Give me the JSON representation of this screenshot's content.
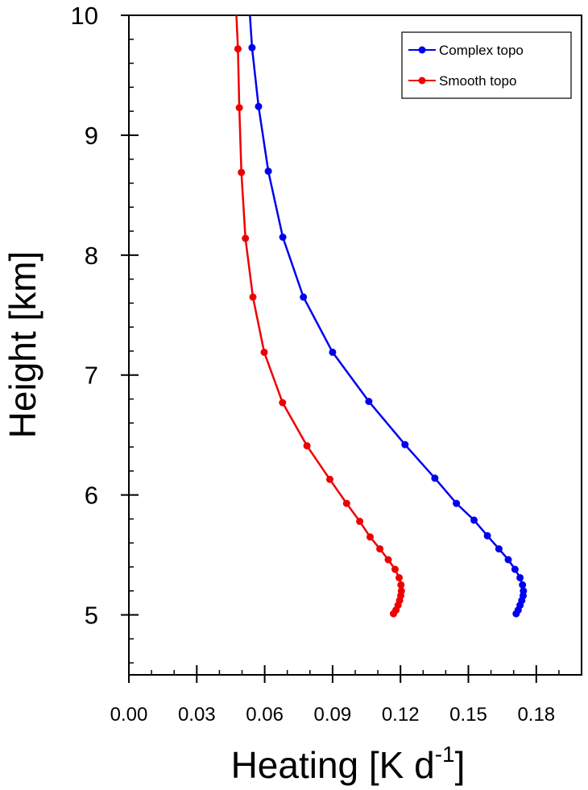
{
  "chart_data": {
    "type": "line",
    "xlabel": "Heating [K d",
    "xlabel_sup": "-1",
    "xlabel_end": "]",
    "ylabel": "Height [km]",
    "xlim": [
      0.0,
      0.2
    ],
    "ylim": [
      4.5,
      10.0
    ],
    "xticks": [
      "0.00",
      "0.03",
      "0.06",
      "0.09",
      "0.12",
      "0.15",
      "0.18"
    ],
    "xtick_values": [
      0.0,
      0.03,
      0.06,
      0.09,
      0.12,
      0.15,
      0.18
    ],
    "yticks": [
      "5",
      "6",
      "7",
      "8",
      "9",
      "10"
    ],
    "ytick_values": [
      5,
      6,
      7,
      8,
      9,
      10
    ],
    "legend_position": "top-right",
    "grid": false,
    "series": [
      {
        "name": "Complex topo",
        "color": "#0000ee",
        "marker": "circle",
        "points": [
          {
            "x": 0.0535,
            "y": 10.0
          },
          {
            "x": 0.0544,
            "y": 9.73
          },
          {
            "x": 0.0573,
            "y": 9.24
          },
          {
            "x": 0.0616,
            "y": 8.7
          },
          {
            "x": 0.068,
            "y": 8.15
          },
          {
            "x": 0.0771,
            "y": 7.65
          },
          {
            "x": 0.09,
            "y": 7.19
          },
          {
            "x": 0.106,
            "y": 6.78
          },
          {
            "x": 0.122,
            "y": 6.42
          },
          {
            "x": 0.1352,
            "y": 6.14
          },
          {
            "x": 0.1447,
            "y": 5.93
          },
          {
            "x": 0.1525,
            "y": 5.79
          },
          {
            "x": 0.1584,
            "y": 5.66
          },
          {
            "x": 0.1635,
            "y": 5.55
          },
          {
            "x": 0.1676,
            "y": 5.46
          },
          {
            "x": 0.1706,
            "y": 5.38
          },
          {
            "x": 0.1728,
            "y": 5.31
          },
          {
            "x": 0.1739,
            "y": 5.25
          },
          {
            "x": 0.1743,
            "y": 5.2
          },
          {
            "x": 0.1742,
            "y": 5.16
          },
          {
            "x": 0.1736,
            "y": 5.12
          },
          {
            "x": 0.1728,
            "y": 5.08
          },
          {
            "x": 0.172,
            "y": 5.04
          },
          {
            "x": 0.1711,
            "y": 5.01
          }
        ]
      },
      {
        "name": "Smooth topo",
        "color": "#ee0000",
        "marker": "circle",
        "points": [
          {
            "x": 0.0475,
            "y": 10.0
          },
          {
            "x": 0.0482,
            "y": 9.72
          },
          {
            "x": 0.0488,
            "y": 9.23
          },
          {
            "x": 0.0497,
            "y": 8.69
          },
          {
            "x": 0.0515,
            "y": 8.14
          },
          {
            "x": 0.0548,
            "y": 7.65
          },
          {
            "x": 0.0598,
            "y": 7.19
          },
          {
            "x": 0.0679,
            "y": 6.77
          },
          {
            "x": 0.0787,
            "y": 6.41
          },
          {
            "x": 0.0888,
            "y": 6.13
          },
          {
            "x": 0.0962,
            "y": 5.93
          },
          {
            "x": 0.102,
            "y": 5.78
          },
          {
            "x": 0.1066,
            "y": 5.65
          },
          {
            "x": 0.1109,
            "y": 5.55
          },
          {
            "x": 0.1146,
            "y": 5.46
          },
          {
            "x": 0.1176,
            "y": 5.38
          },
          {
            "x": 0.1194,
            "y": 5.31
          },
          {
            "x": 0.1202,
            "y": 5.25
          },
          {
            "x": 0.1204,
            "y": 5.2
          },
          {
            "x": 0.1201,
            "y": 5.16
          },
          {
            "x": 0.1196,
            "y": 5.12
          },
          {
            "x": 0.1189,
            "y": 5.08
          },
          {
            "x": 0.118,
            "y": 5.04
          },
          {
            "x": 0.1169,
            "y": 5.01
          }
        ]
      }
    ]
  }
}
